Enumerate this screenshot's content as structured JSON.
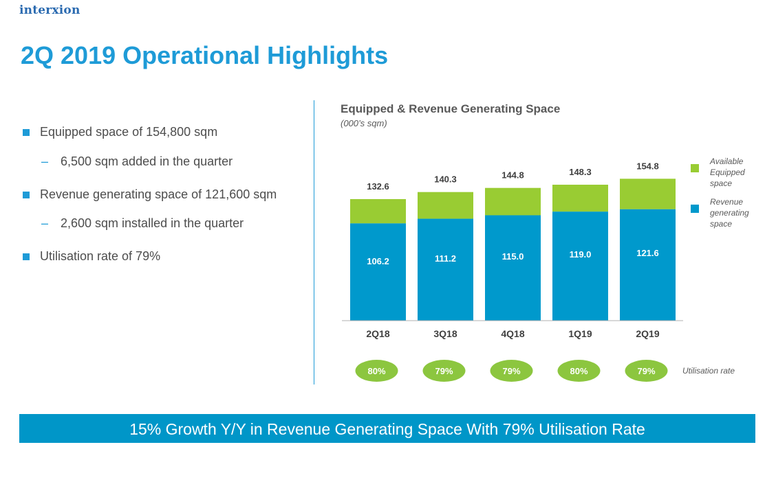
{
  "brand": {
    "logo_text": "interxion"
  },
  "page": {
    "title": "2Q 2019 Operational Highlights"
  },
  "bullets": [
    {
      "level": 1,
      "text": "Equipped space of 154,800 sqm"
    },
    {
      "level": 2,
      "text": "6,500 sqm added in the quarter"
    },
    {
      "level": 1,
      "text": "Revenue generating space of 121,600 sqm"
    },
    {
      "level": 2,
      "text": "2,600 sqm installed in the quarter"
    },
    {
      "level": 1,
      "text": "Utilisation rate of 79%"
    }
  ],
  "bullet_marks": {
    "level2_dash": "–"
  },
  "chart_data": {
    "type": "bar",
    "stacked": true,
    "title": "Equipped & Revenue Generating Space",
    "subtitle": "(000’s sqm)",
    "categories": [
      "2Q18",
      "3Q18",
      "4Q18",
      "1Q19",
      "2Q19"
    ],
    "series": [
      {
        "name": "Revenue generating space",
        "legend_lines": [
          "Revenue",
          "generating",
          "space"
        ],
        "color": "#0099cc",
        "values": [
          106.2,
          111.2,
          115.0,
          119.0,
          121.6
        ]
      },
      {
        "name": "Available Equipped space",
        "legend_lines": [
          "Available",
          "Equipped",
          "space"
        ],
        "color": "#99cc33",
        "values": [
          26.4,
          29.1,
          29.8,
          29.3,
          33.2
        ]
      }
    ],
    "totals": [
      132.6,
      140.3,
      144.8,
      148.3,
      154.8
    ],
    "segment_labels": [
      "106.2",
      "111.2",
      "115.0",
      "119.0",
      "121.6"
    ],
    "total_labels": [
      "132.6",
      "140.3",
      "144.8",
      "148.3",
      "154.8"
    ],
    "utilisation": {
      "label": "Utilisation rate",
      "values": [
        "80%",
        "79%",
        "79%",
        "80%",
        "79%"
      ],
      "color": "#8cc63f"
    },
    "ylim": [
      0,
      160
    ]
  },
  "banner": {
    "text": "15% Growth Y/Y in Revenue Generating Space With 79% Utilisation Rate"
  }
}
